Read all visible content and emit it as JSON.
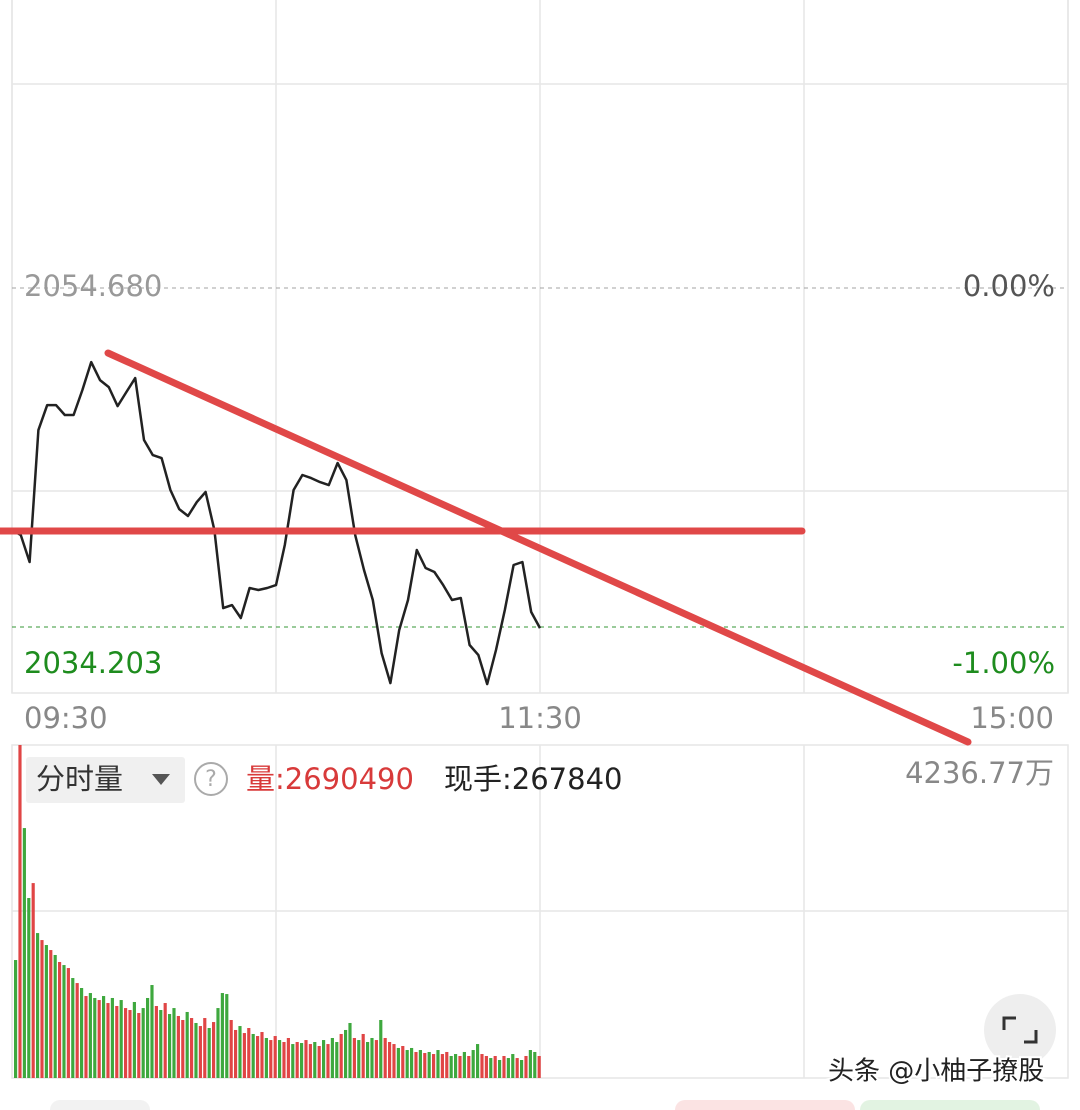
{
  "chart_data": [
    {
      "type": "line",
      "x": [
        0,
        2,
        4,
        6,
        8,
        10,
        12,
        14,
        16,
        18,
        20,
        22,
        24,
        26,
        28,
        30,
        32,
        34,
        36,
        38,
        40,
        42,
        44,
        46,
        48,
        50,
        52,
        54,
        56,
        58,
        60,
        62,
        64,
        66,
        68,
        70,
        72,
        74,
        76,
        78,
        80,
        82,
        84,
        86,
        88,
        90,
        92,
        94,
        96,
        98,
        100,
        102,
        104,
        106,
        108,
        110,
        112,
        114,
        116,
        118,
        120
      ],
      "series": [
        {
          "color": "#222222",
          "values": [
            2040.06,
            2039.76,
            2038.13,
            2046.1,
            2047.61,
            2047.61,
            2047.01,
            2047.01,
            2048.52,
            2050.21,
            2049.12,
            2048.7,
            2047.55,
            2048.4,
            2049.24,
            2045.5,
            2044.59,
            2044.41,
            2042.48,
            2041.33,
            2040.91,
            2041.75,
            2042.36,
            2040.06,
            2035.35,
            2035.53,
            2034.75,
            2036.56,
            2036.44,
            2036.56,
            2036.74,
            2039.16,
            2042.48,
            2043.39,
            2043.2,
            2042.96,
            2042.78,
            2044.11,
            2043.08,
            2039.76,
            2037.65,
            2035.84,
            2032.63,
            2030.82,
            2034.02,
            2035.84,
            2038.86,
            2037.77,
            2037.53,
            2036.74,
            2035.84,
            2035.96,
            2033.12,
            2032.51,
            2030.76,
            2032.82,
            2035.23,
            2037.95,
            2038.13,
            2035.11,
            2034.14
          ]
        }
      ],
      "xlim": [
        0,
        240
      ],
      "xticks": [
        {
          "value": 0,
          "label": "09:30"
        },
        {
          "value": 120,
          "label": "11:30"
        },
        {
          "value": 240,
          "label": "15:00"
        }
      ],
      "ylim": [
        2030.22,
        2072.08
      ],
      "yticks": [
        {
          "value": 2054.68,
          "label": "2054.680"
        },
        2034.203
      ],
      "y2lim": [
        -1.195,
        0.85
      ],
      "y2ticks": [
        {
          "value": 0,
          "label": "0.00%"
        },
        {
          "value": -1,
          "label": "-1.00%"
        }
      ],
      "tick_colors": [
        "#999999",
        "#1e8c1e"
      ]
    },
    {
      "type": "bar",
      "title": "分时量",
      "annotations": [
        "量:2690490",
        "现手:267840"
      ],
      "help_icon": "?",
      "values": [
        1501,
        4236.77,
        3180,
        2290,
        2480,
        1844,
        1755,
        1692,
        1628,
        1565,
        1476,
        1437,
        1399,
        1272,
        1208,
        1145,
        1043,
        1081,
        1018,
        992,
        1043,
        954,
        1018,
        916,
        992,
        890,
        865,
        967,
        827,
        890,
        1018,
        1183,
        916,
        865,
        954,
        814,
        890,
        789,
        738,
        840,
        763,
        700,
        661,
        763,
        636,
        712,
        890,
        1081,
        1068,
        738,
        611,
        661,
        572,
        636,
        560,
        534,
        585,
        509,
        483,
        534,
        483,
        458,
        509,
        432,
        458,
        445,
        483,
        432,
        458,
        407,
        483,
        432,
        509,
        458,
        560,
        611,
        700,
        509,
        483,
        560,
        458,
        509,
        483,
        738,
        509,
        458,
        432,
        382,
        407,
        356,
        382,
        331,
        356,
        318,
        331,
        305,
        356,
        305,
        331,
        280,
        305,
        280,
        331,
        280,
        356,
        432,
        305,
        280,
        254,
        280,
        229,
        280,
        254,
        305,
        254,
        229,
        280,
        356,
        331,
        280
      ],
      "colors": [
        "#3ea83e",
        "#e04545",
        "#3ea83e",
        "#3ea83e",
        "#e04545",
        "#3ea83e",
        "#e04545",
        "#3ea83e",
        "#e04545",
        "#3ea83e",
        "#e04545",
        "#3ea83e",
        "#e04545",
        "#3ea83e",
        "#e04545",
        "#3ea83e",
        "#e04545",
        "#3ea83e",
        "#3ea83e",
        "#e04545",
        "#3ea83e",
        "#e04545",
        "#3ea83e",
        "#e04545",
        "#3ea83e",
        "#e04545",
        "#e04545",
        "#3ea83e",
        "#e04545",
        "#3ea83e",
        "#3ea83e",
        "#3ea83e",
        "#e04545",
        "#3ea83e",
        "#e04545",
        "#3ea83e",
        "#3ea83e",
        "#e04545",
        "#e04545",
        "#3ea83e",
        "#e04545",
        "#3ea83e",
        "#e04545",
        "#e04545",
        "#3ea83e",
        "#e04545",
        "#3ea83e",
        "#3ea83e",
        "#3ea83e",
        "#e04545",
        "#e04545",
        "#3ea83e",
        "#e04545",
        "#e04545",
        "#3ea83e",
        "#e04545",
        "#e04545",
        "#3ea83e",
        "#e04545",
        "#e04545",
        "#3ea83e",
        "#e04545",
        "#e04545",
        "#3ea83e",
        "#e04545",
        "#3ea83e",
        "#e04545",
        "#e04545",
        "#3ea83e",
        "#e04545",
        "#3ea83e",
        "#e04545",
        "#3ea83e",
        "#3ea83e",
        "#e04545",
        "#3ea83e",
        "#3ea83e",
        "#e04545",
        "#3ea83e",
        "#e04545",
        "#3ea83e",
        "#3ea83e",
        "#e04545",
        "#3ea83e",
        "#e04545",
        "#e04545",
        "#e04545",
        "#3ea83e",
        "#e04545",
        "#3ea83e",
        "#3ea83e",
        "#e04545",
        "#3ea83e",
        "#e04545",
        "#3ea83e",
        "#e04545",
        "#3ea83e",
        "#e04545",
        "#e04545",
        "#3ea83e",
        "#3ea83e",
        "#e04545",
        "#3ea83e",
        "#e04545",
        "#3ea83e",
        "#3ea83e",
        "#e04545",
        "#e04545",
        "#3ea83e",
        "#e04545",
        "#3ea83e",
        "#e04545",
        "#3ea83e",
        "#3ea83e",
        "#e04545",
        "#3ea83e",
        "#e04545",
        "#3ea83e",
        "#3ea83e",
        "#e04545"
      ],
      "ylim": [
        0,
        4236.77
      ],
      "yticks": [
        {
          "value": 4236.77,
          "label": "4236.77万"
        }
      ]
    }
  ],
  "watermark": "头条 @小柚子撩股"
}
